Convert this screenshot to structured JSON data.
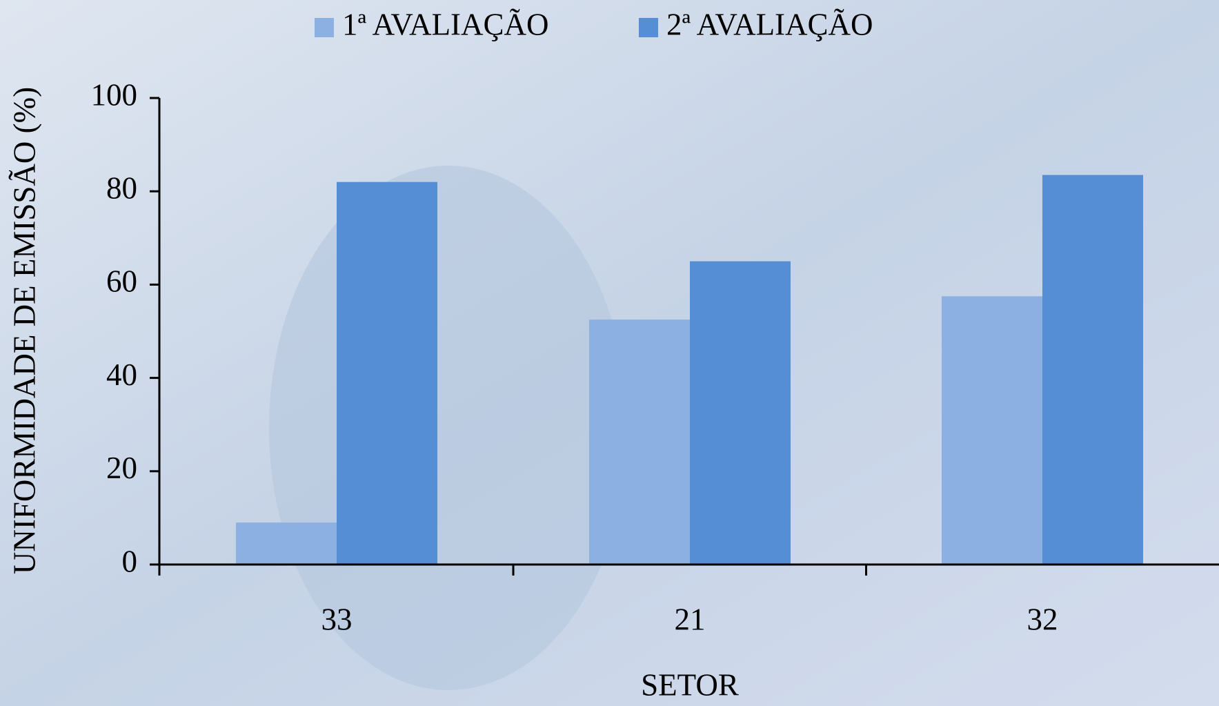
{
  "chart_data": {
    "type": "bar",
    "x_label": "SETOR",
    "y_label": "UNIFORMIDADE DE EMISSÃO (%)",
    "categories": [
      "33",
      "21",
      "32"
    ],
    "series": [
      {
        "name": "1ª AVALIAÇÃO",
        "color": "#8db0e2",
        "values": [
          9,
          52.5,
          57.5
        ]
      },
      {
        "name": "2ª AVALIAÇÃO",
        "color": "#558ed5",
        "values": [
          82,
          65,
          83.5
        ]
      }
    ],
    "ylim": [
      0,
      100
    ],
    "yticks": [
      0,
      20,
      40,
      60,
      80,
      100
    ],
    "grid": false,
    "legend": "top"
  }
}
